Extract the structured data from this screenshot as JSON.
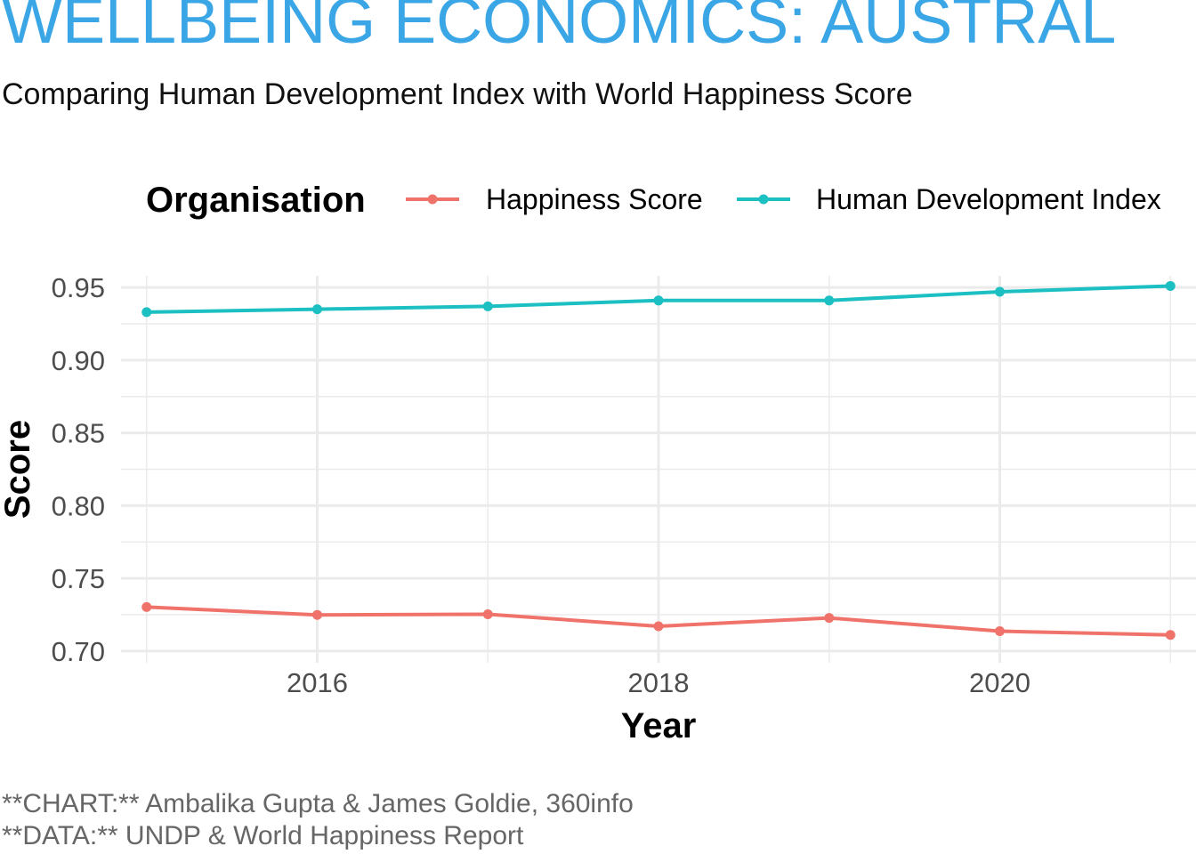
{
  "header": {
    "title": "WELLBEING ECONOMICS: AUSTRAL",
    "subtitle": "Comparing Human Development Index with World Happiness Score"
  },
  "legend": {
    "title": "Organisation"
  },
  "caption": {
    "line1": "**CHART:** Ambalika Gupta & James Goldie, 360info",
    "line2": "**DATA:** UNDP & World Happiness Report"
  },
  "colors": {
    "title": "#3aa6e6",
    "happiness": "#f0736b",
    "hdi": "#1cbfc2",
    "grid": "#ebebeb"
  },
  "chart_data": {
    "type": "line",
    "xlabel": "Year",
    "ylabel": "Score",
    "x": [
      2015,
      2016,
      2017,
      2018,
      2019,
      2020,
      2021
    ],
    "x_ticks": [
      2016,
      2018,
      2020
    ],
    "xlim": [
      2014.85,
      2021.15
    ],
    "y_ticks": [
      0.7,
      0.75,
      0.8,
      0.85,
      0.9,
      0.95
    ],
    "ylim": [
      0.692,
      0.958
    ],
    "grid": true,
    "legend_position": "top",
    "series": [
      {
        "name": "Happiness Score",
        "color": "#f0736b",
        "values": [
          0.7303,
          0.7249,
          0.7253,
          0.7171,
          0.7228,
          0.7137,
          0.7111
        ]
      },
      {
        "name": "Human Development Index",
        "color": "#1cbfc2",
        "values": [
          0.933,
          0.935,
          0.937,
          0.941,
          0.941,
          0.947,
          0.951
        ]
      }
    ]
  }
}
